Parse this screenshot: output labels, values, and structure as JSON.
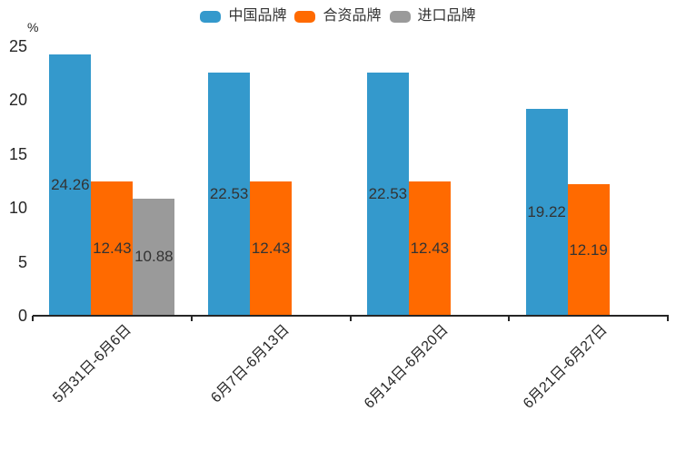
{
  "chart_data": {
    "type": "bar",
    "title": "",
    "ylabel": "%",
    "xlabel": "",
    "categories": [
      "5月31日-6月6日",
      "6月7日-6月13日",
      "6月14日-6月20日",
      "6月21日-6月27日"
    ],
    "series": [
      {
        "name": "中国品牌",
        "color": "#3499cc",
        "values": [
          24.26,
          22.53,
          22.53,
          19.22
        ]
      },
      {
        "name": "合资品牌",
        "color": "#ff6a00",
        "values": [
          12.43,
          12.43,
          12.43,
          12.19
        ]
      },
      {
        "name": "进口品牌",
        "color": "#9a9a9a",
        "values": [
          10.88,
          null,
          null,
          null
        ]
      }
    ],
    "value_labels": [
      "24.26",
      "12.43",
      "10.88",
      "22.53",
      "12.43",
      "22.53",
      "12.43",
      "19.22",
      "12.19"
    ],
    "ylim": [
      0,
      25
    ],
    "yticks": [
      0,
      5,
      10,
      15,
      20,
      25
    ],
    "legend_position": "top-center",
    "grid": false,
    "value_label_position": "inside-center",
    "xtick_rotation_deg": 45,
    "axis_color": "#262626",
    "value_label_color": "#333333",
    "background": "#ffffff"
  }
}
